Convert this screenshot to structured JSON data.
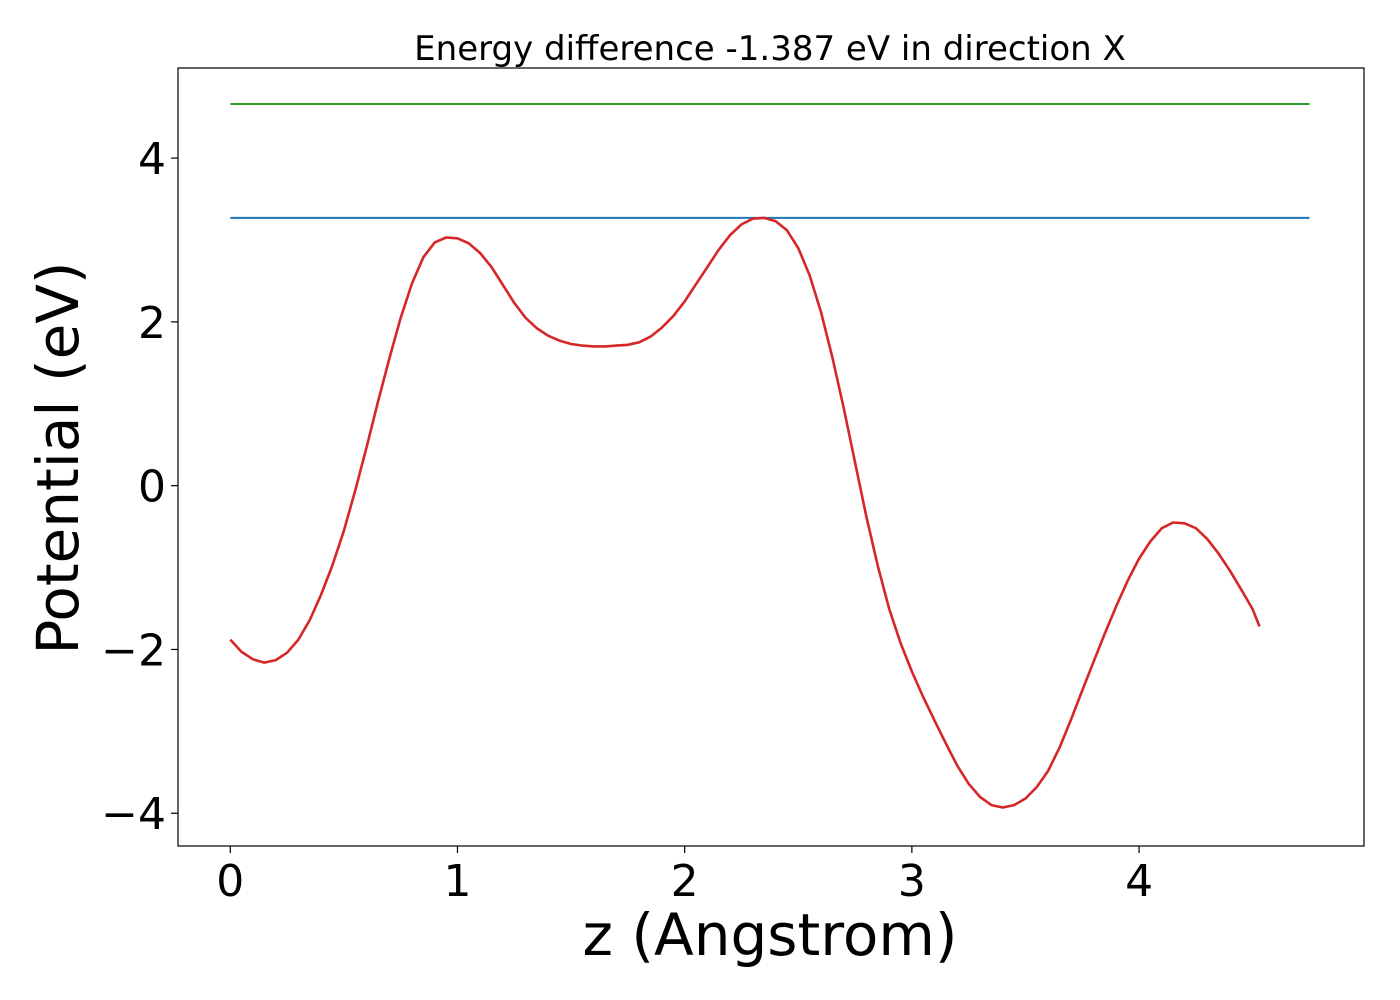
{
  "chart_data": {
    "type": "line",
    "title": "Energy difference -1.387 eV in direction X",
    "xlabel": "z (Angstrom)",
    "ylabel": "Potential (eV)",
    "xlim": [
      -0.23,
      4.99
    ],
    "ylim": [
      -4.4,
      5.1
    ],
    "grid": false,
    "x_ticks": [
      0,
      1,
      2,
      3,
      4
    ],
    "x_tick_labels": [
      "0",
      "1",
      "2",
      "3",
      "4"
    ],
    "y_ticks": [
      -4,
      -2,
      0,
      2,
      4
    ],
    "y_tick_labels": [
      "−4",
      "−2",
      "0",
      "2",
      "4"
    ],
    "series": [
      {
        "color": "#d62728",
        "points": [
          [
            0.0,
            -1.88
          ],
          [
            0.05,
            -2.03
          ],
          [
            0.1,
            -2.12
          ],
          [
            0.15,
            -2.16
          ],
          [
            0.2,
            -2.13
          ],
          [
            0.25,
            -2.04
          ],
          [
            0.3,
            -1.88
          ],
          [
            0.35,
            -1.64
          ],
          [
            0.4,
            -1.33
          ],
          [
            0.45,
            -0.97
          ],
          [
            0.5,
            -0.55
          ],
          [
            0.55,
            -0.06
          ],
          [
            0.6,
            0.47
          ],
          [
            0.65,
            1.02
          ],
          [
            0.7,
            1.55
          ],
          [
            0.75,
            2.05
          ],
          [
            0.8,
            2.47
          ],
          [
            0.85,
            2.79
          ],
          [
            0.9,
            2.97
          ],
          [
            0.95,
            3.03
          ],
          [
            1.0,
            3.02
          ],
          [
            1.05,
            2.96
          ],
          [
            1.1,
            2.84
          ],
          [
            1.15,
            2.67
          ],
          [
            1.2,
            2.45
          ],
          [
            1.25,
            2.23
          ],
          [
            1.3,
            2.05
          ],
          [
            1.35,
            1.92
          ],
          [
            1.4,
            1.83
          ],
          [
            1.45,
            1.77
          ],
          [
            1.5,
            1.73
          ],
          [
            1.55,
            1.71
          ],
          [
            1.6,
            1.7
          ],
          [
            1.65,
            1.7
          ],
          [
            1.7,
            1.71
          ],
          [
            1.75,
            1.72
          ],
          [
            1.8,
            1.75
          ],
          [
            1.85,
            1.82
          ],
          [
            1.9,
            1.93
          ],
          [
            1.95,
            2.07
          ],
          [
            2.0,
            2.25
          ],
          [
            2.05,
            2.46
          ],
          [
            2.1,
            2.67
          ],
          [
            2.15,
            2.88
          ],
          [
            2.2,
            3.06
          ],
          [
            2.25,
            3.19
          ],
          [
            2.3,
            3.26
          ],
          [
            2.35,
            3.27
          ],
          [
            2.4,
            3.23
          ],
          [
            2.45,
            3.12
          ],
          [
            2.5,
            2.9
          ],
          [
            2.55,
            2.57
          ],
          [
            2.6,
            2.12
          ],
          [
            2.65,
            1.57
          ],
          [
            2.7,
            0.95
          ],
          [
            2.75,
            0.28
          ],
          [
            2.8,
            -0.38
          ],
          [
            2.85,
            -0.98
          ],
          [
            2.9,
            -1.5
          ],
          [
            2.95,
            -1.92
          ],
          [
            3.0,
            -2.27
          ],
          [
            3.05,
            -2.58
          ],
          [
            3.1,
            -2.87
          ],
          [
            3.15,
            -3.15
          ],
          [
            3.2,
            -3.42
          ],
          [
            3.25,
            -3.64
          ],
          [
            3.3,
            -3.8
          ],
          [
            3.35,
            -3.9
          ],
          [
            3.4,
            -3.93
          ],
          [
            3.45,
            -3.9
          ],
          [
            3.5,
            -3.82
          ],
          [
            3.55,
            -3.68
          ],
          [
            3.6,
            -3.48
          ],
          [
            3.65,
            -3.2
          ],
          [
            3.7,
            -2.86
          ],
          [
            3.75,
            -2.5
          ],
          [
            3.8,
            -2.15
          ],
          [
            3.85,
            -1.8
          ],
          [
            3.9,
            -1.47
          ],
          [
            3.95,
            -1.16
          ],
          [
            4.0,
            -0.89
          ],
          [
            4.05,
            -0.68
          ],
          [
            4.1,
            -0.52
          ],
          [
            4.15,
            -0.45
          ],
          [
            4.2,
            -0.46
          ],
          [
            4.25,
            -0.52
          ],
          [
            4.3,
            -0.65
          ],
          [
            4.35,
            -0.83
          ],
          [
            4.4,
            -1.04
          ],
          [
            4.45,
            -1.27
          ],
          [
            4.5,
            -1.51
          ],
          [
            4.53,
            -1.72
          ]
        ]
      },
      {
        "color": "#1f77b4",
        "points": [
          [
            0.0,
            3.27
          ],
          [
            4.75,
            3.27
          ]
        ]
      },
      {
        "color": "#2ca02c",
        "points": [
          [
            0.0,
            4.66
          ],
          [
            4.75,
            4.66
          ]
        ]
      }
    ]
  }
}
